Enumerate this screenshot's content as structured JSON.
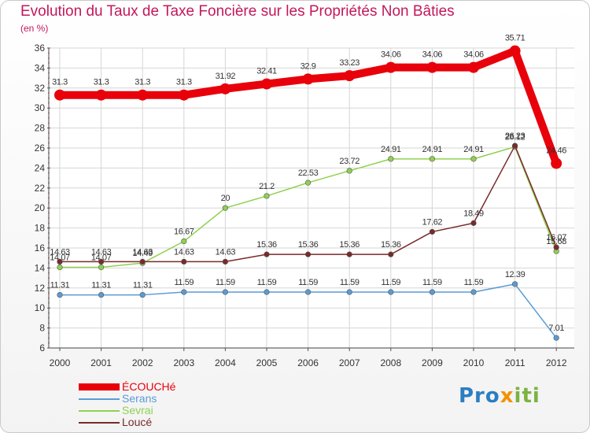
{
  "title": "Evolution du Taux de Taxe Foncière sur les Propriétés Non Bâties",
  "unit_label": "(en %)",
  "logo": {
    "parts": [
      "Pro",
      "x",
      "iti"
    ]
  },
  "chart_data": {
    "type": "line",
    "x": [
      "2000",
      "2001",
      "2002",
      "2003",
      "2004",
      "2005",
      "2006",
      "2007",
      "2008",
      "2009",
      "2010",
      "2011",
      "2012"
    ],
    "ylim": [
      6,
      36
    ],
    "yticks": [
      6,
      8,
      10,
      12,
      14,
      16,
      18,
      20,
      22,
      24,
      26,
      28,
      30,
      32,
      34,
      36
    ],
    "grid": true,
    "legend_position": "bottom-left",
    "series": [
      {
        "name": "ÉCOUCHé",
        "color": "#e8000b",
        "values": [
          31.3,
          31.3,
          31.3,
          31.3,
          31.92,
          32.41,
          32.9,
          33.23,
          34.06,
          34.06,
          34.06,
          35.71,
          24.46
        ],
        "labels": [
          "31.3",
          "31.3",
          "31.3",
          "31.3",
          "31.92",
          "32.41",
          "32.9",
          "33.23",
          "34.06",
          "34.06",
          "34.06",
          "35.71",
          "24.46"
        ]
      },
      {
        "name": "Serans",
        "color": "#5b9bd5",
        "values": [
          11.31,
          11.31,
          11.31,
          11.59,
          11.59,
          11.59,
          11.59,
          11.59,
          11.59,
          11.59,
          11.59,
          12.39,
          7.01
        ],
        "labels": [
          "11.31",
          "11.31",
          "11.31",
          "11.59",
          "11.59",
          "11.59",
          "11.59",
          "11.59",
          "11.59",
          "11.59",
          "11.59",
          "12.39",
          "7.01"
        ]
      },
      {
        "name": "Sevrai",
        "color": "#8fd14f",
        "values": [
          14.07,
          14.07,
          14.49,
          16.67,
          20,
          21.2,
          22.53,
          23.72,
          24.91,
          24.91,
          24.91,
          26.12,
          15.68
        ],
        "labels": [
          "14.07",
          "14.07",
          "14.49",
          "16.67",
          "20",
          "21.2",
          "22.53",
          "23.72",
          "24.91",
          "24.91",
          "24.91",
          "26.12",
          "15.68"
        ]
      },
      {
        "name": "Loucé",
        "color": "#7a2a2a",
        "values": [
          14.63,
          14.63,
          14.63,
          14.63,
          14.63,
          15.36,
          15.36,
          15.36,
          15.36,
          17.62,
          18.49,
          26.23,
          16.07
        ],
        "labels": [
          "14.63",
          "14.63",
          "14.63",
          "14.63",
          "14.63",
          "15.36",
          "15.36",
          "15.36",
          "15.36",
          "17.62",
          "18.49",
          "26.23",
          "16.07"
        ]
      }
    ]
  }
}
